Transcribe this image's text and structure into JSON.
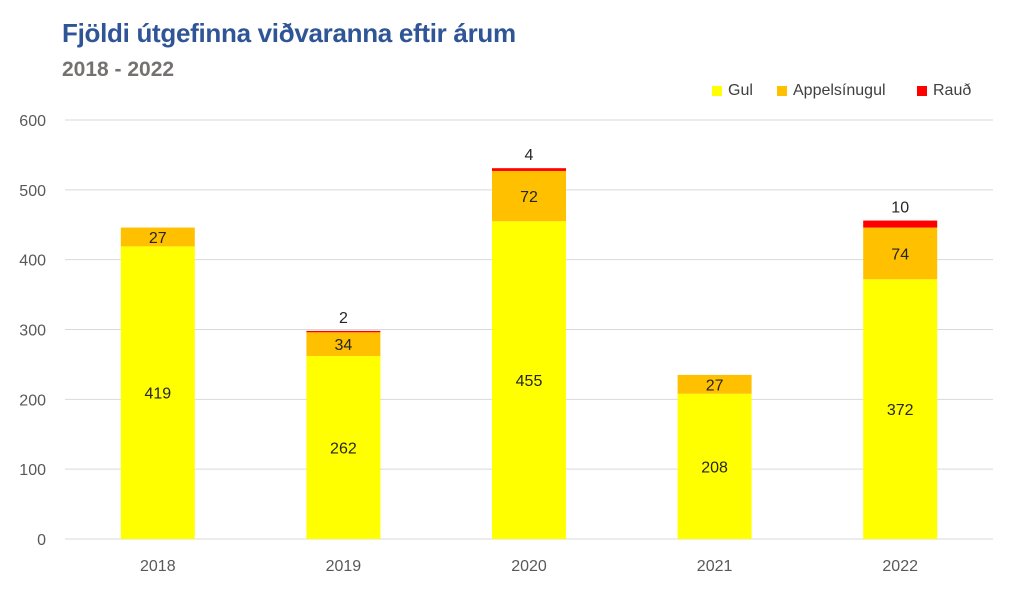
{
  "chart_data": {
    "type": "bar",
    "stacked": true,
    "title": "Fjöldi útgefinna viðvaranna eftir árum",
    "subtitle": "2018 - 2022",
    "categories": [
      "2018",
      "2019",
      "2020",
      "2021",
      "2022"
    ],
    "series": [
      {
        "name": "Gul",
        "color": "#FFFF00",
        "values": [
          419,
          262,
          455,
          208,
          372
        ]
      },
      {
        "name": "Appelsínugul",
        "color": "#FFC000",
        "values": [
          27,
          34,
          72,
          27,
          74
        ]
      },
      {
        "name": "Rauð",
        "color": "#FF0000",
        "values": [
          0,
          2,
          4,
          0,
          10
        ]
      }
    ],
    "ylim": [
      0,
      600
    ],
    "yticks": [
      0,
      100,
      200,
      300,
      400,
      500,
      600
    ],
    "grid": true,
    "legend_position": "top-right",
    "xlabel": "",
    "ylabel": ""
  }
}
